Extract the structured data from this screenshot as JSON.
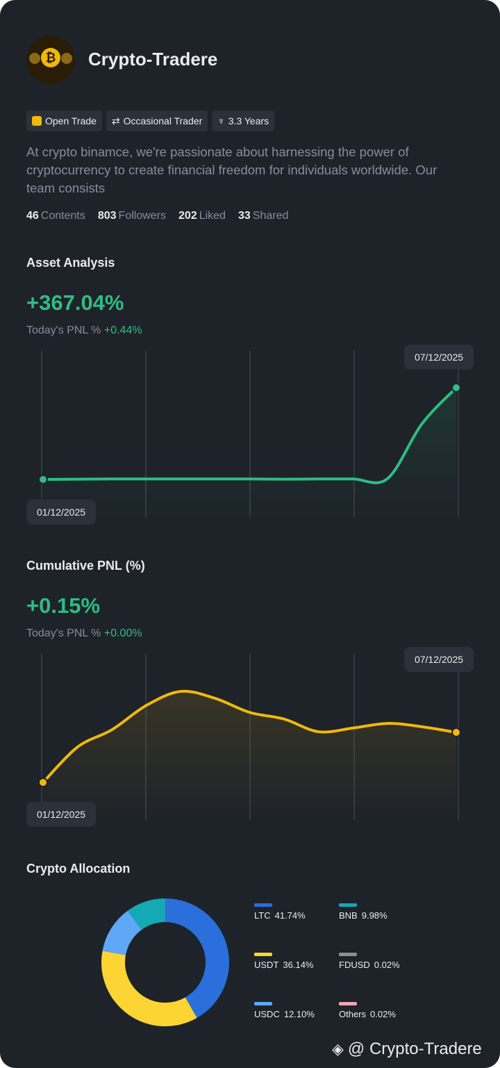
{
  "profile": {
    "name": "Crypto-Tradere",
    "badges": [
      "Open Trade",
      "Occasional Trader",
      "3.3 Years"
    ],
    "description": "At crypto binamce, we're passionate about harnessing the power of cryptocurrency to create financial freedom for individuals worldwide. Our team consists",
    "stats": [
      {
        "value": 46,
        "label": "Contents"
      },
      {
        "value": 803,
        "label": "Followers"
      },
      {
        "value": 202,
        "label": "Liked"
      },
      {
        "value": 33,
        "label": "Shared"
      }
    ]
  },
  "chart_data": [
    {
      "type": "line",
      "title": "Asset Analysis",
      "headline": "+367.04%",
      "today_label": "Today's PNL %",
      "today_value": "+0.44%",
      "color": "#2ebd85",
      "categories": [
        "01/12/2025",
        null,
        null,
        null,
        null,
        null,
        null,
        null,
        null,
        null,
        null,
        null,
        "07/12/2025"
      ],
      "values": [
        0,
        1,
        2,
        2,
        2,
        2,
        2,
        1,
        2,
        2,
        3,
        222,
        367.04
      ]
    },
    {
      "type": "line",
      "title": "Cumulative PNL (%)",
      "headline": "+0.15%",
      "today_label": "Today's PNL %",
      "today_value": "+0.00%",
      "color": "#f0b90b",
      "categories": [
        "01/12/2025",
        null,
        null,
        null,
        null,
        null,
        null,
        null,
        null,
        null,
        null,
        null,
        "07/12/2025"
      ],
      "values": [
        0,
        0.106,
        0.158,
        0.231,
        0.273,
        0.252,
        0.21,
        0.19,
        0.152,
        0.163,
        0.177,
        0.167,
        0.15
      ]
    },
    {
      "type": "pie",
      "title": "Crypto Allocation",
      "categories": [
        "LTC",
        "USDT",
        "USDC",
        "BNB",
        "FDUSD",
        "Others"
      ],
      "values": [
        41.74,
        36.14,
        12.1,
        9.98,
        0.02,
        0.02
      ],
      "value_labels": [
        "41.74%",
        "36.14%",
        "12.10%",
        "9.98%",
        "0.02%",
        "0.02%"
      ],
      "colors": [
        "#2a6fdb",
        "#fcd535",
        "#5ea8f7",
        "#13a9b5",
        "#8a8f98",
        "#f6a6b0"
      ]
    }
  ],
  "watermark": "@ Crypto-Tradere"
}
